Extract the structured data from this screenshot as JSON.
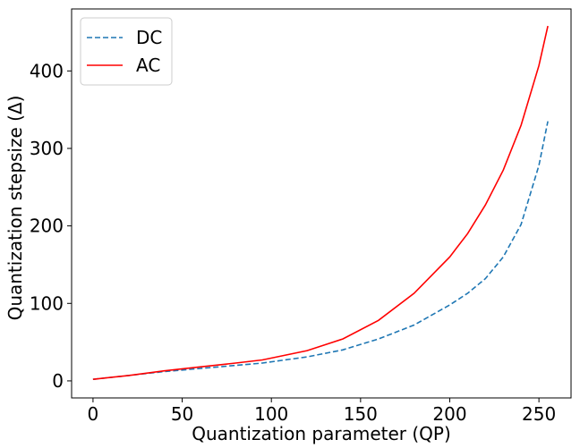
{
  "chart_data": {
    "type": "line",
    "xlabel": "Quantization parameter (QP)",
    "ylabel": "Quantization stepsize (Δ)",
    "xlim": [
      -12,
      268
    ],
    "ylim": [
      -22,
      480
    ],
    "xticks": [
      0,
      50,
      100,
      150,
      200,
      250
    ],
    "yticks": [
      0,
      100,
      200,
      300,
      400
    ],
    "grid": false,
    "legend_position": "top-left",
    "x": [
      0,
      20,
      40,
      60,
      80,
      95,
      120,
      140,
      160,
      180,
      200,
      210,
      220,
      230,
      240,
      250,
      255
    ],
    "series": [
      {
        "name": "DC",
        "style": "dashed",
        "color": "#1f77b4",
        "values": [
          2,
          7,
          12,
          16,
          20,
          23,
          31,
          40,
          54,
          72,
          98,
          113,
          132,
          160,
          202,
          278,
          335
        ]
      },
      {
        "name": "AC",
        "style": "solid",
        "color": "#ff0000",
        "values": [
          2,
          7,
          13,
          18,
          23,
          27,
          39,
          54,
          78,
          113,
          160,
          190,
          227,
          272,
          330,
          407,
          458
        ]
      }
    ]
  }
}
